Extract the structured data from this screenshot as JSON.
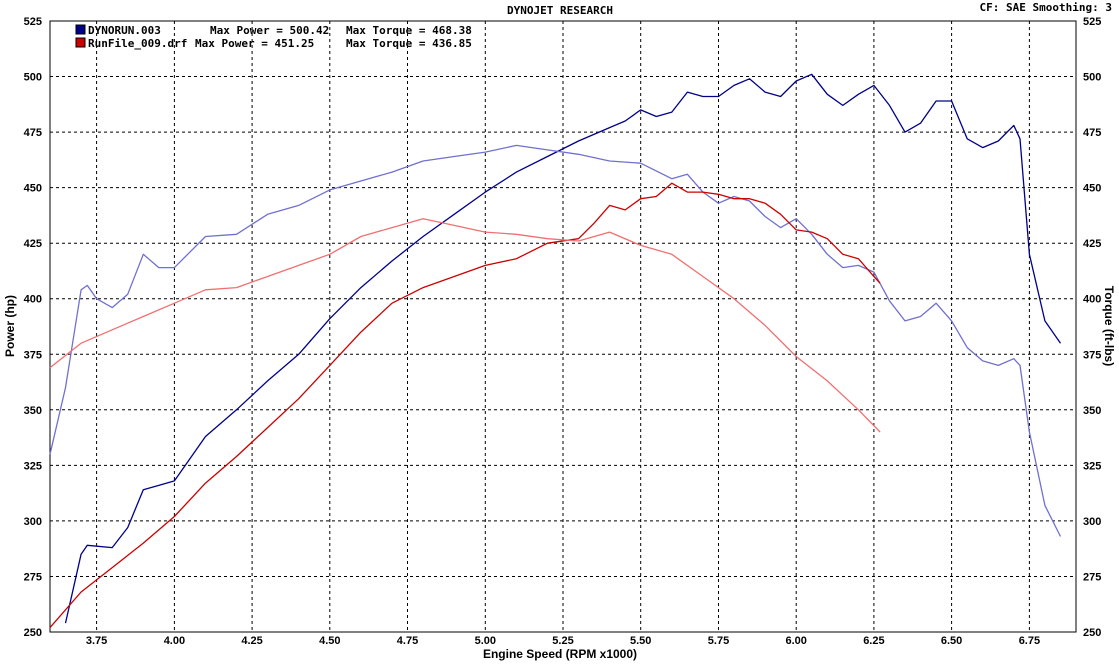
{
  "header": {
    "title": "DYNOJET RESEARCH",
    "info": "CF: SAE  Smoothing: 3"
  },
  "legend": [
    {
      "file": "DYNORUN.003",
      "power_label": "Max Power = 500.42",
      "torque_label": "Max Torque = 468.38",
      "color": "#00008b"
    },
    {
      "file": "RunFile_009.drf",
      "power_label": "Max Power = 451.25",
      "torque_label": "Max Torque = 436.85",
      "color": "#cc0000"
    }
  ],
  "chart_data": {
    "type": "line",
    "title": "DYNOJET RESEARCH",
    "xlabel": "Engine Speed (RPM x1000)",
    "ylabel_left": "Power (hp)",
    "ylabel_right": "Torque (ft-lbs)",
    "xlim": [
      3.6,
      6.9
    ],
    "ylim": [
      250,
      525
    ],
    "x_ticks": [
      3.75,
      4.0,
      4.25,
      4.5,
      4.75,
      5.0,
      5.25,
      5.5,
      5.75,
      6.0,
      6.25,
      6.5,
      6.75
    ],
    "x_tick_labels": [
      "3.75",
      "4.00",
      "4.25",
      "4.50",
      "4.75",
      "5.00",
      "5.25",
      "5.50",
      "5.75",
      "6.00",
      "6.25",
      "6.50",
      "6.75"
    ],
    "y_ticks": [
      250,
      275,
      300,
      325,
      350,
      375,
      400,
      425,
      450,
      475,
      500,
      525
    ],
    "y_tick_labels": [
      "250",
      "275",
      "300",
      "325",
      "350",
      "375",
      "400",
      "425",
      "450",
      "475",
      "500",
      "525"
    ],
    "grid": true,
    "series": [
      {
        "name": "DYNORUN.003 Power",
        "color": "#00008b",
        "x": [
          3.65,
          3.7,
          3.72,
          3.8,
          3.85,
          3.9,
          3.95,
          4.0,
          4.1,
          4.2,
          4.3,
          4.4,
          4.5,
          4.6,
          4.7,
          4.8,
          4.9,
          5.0,
          5.1,
          5.2,
          5.3,
          5.4,
          5.45,
          5.5,
          5.55,
          5.6,
          5.65,
          5.7,
          5.75,
          5.8,
          5.85,
          5.9,
          5.95,
          6.0,
          6.05,
          6.1,
          6.15,
          6.2,
          6.25,
          6.3,
          6.35,
          6.4,
          6.45,
          6.5,
          6.55,
          6.6,
          6.65,
          6.7,
          6.72,
          6.75,
          6.8,
          6.85
        ],
        "y": [
          254,
          285,
          289,
          288,
          297,
          314,
          316,
          318,
          338,
          350,
          363,
          375,
          391,
          405,
          417,
          428,
          438,
          448,
          457,
          464,
          471,
          477,
          480,
          485,
          482,
          484,
          493,
          491,
          491,
          496,
          499,
          493,
          491,
          498,
          501,
          492,
          487,
          492,
          496,
          487,
          475,
          479,
          489,
          489,
          472,
          468,
          471,
          478,
          472,
          420,
          390,
          380
        ]
      },
      {
        "name": "DYNORUN.003 Torque",
        "color": "#7070d0",
        "x": [
          3.6,
          3.65,
          3.7,
          3.72,
          3.75,
          3.8,
          3.85,
          3.9,
          3.95,
          4.0,
          4.1,
          4.2,
          4.3,
          4.4,
          4.5,
          4.6,
          4.7,
          4.8,
          4.9,
          5.0,
          5.1,
          5.2,
          5.3,
          5.4,
          5.5,
          5.6,
          5.65,
          5.7,
          5.75,
          5.8,
          5.85,
          5.9,
          5.95,
          6.0,
          6.05,
          6.1,
          6.15,
          6.2,
          6.25,
          6.3,
          6.35,
          6.4,
          6.45,
          6.5,
          6.55,
          6.6,
          6.65,
          6.7,
          6.72,
          6.75,
          6.8,
          6.85
        ],
        "y": [
          330,
          360,
          404,
          406,
          400,
          396,
          402,
          420,
          414,
          414,
          428,
          429,
          438,
          442,
          449,
          453,
          457,
          462,
          464,
          466,
          469,
          467,
          465,
          462,
          461,
          454,
          456,
          448,
          443,
          446,
          444,
          437,
          432,
          436,
          429,
          420,
          414,
          415,
          412,
          399,
          390,
          392,
          398,
          390,
          378,
          372,
          370,
          373,
          370,
          340,
          307,
          293
        ]
      },
      {
        "name": "RunFile_009.drf Power",
        "color": "#cc0000",
        "x": [
          3.6,
          3.7,
          3.8,
          3.9,
          4.0,
          4.1,
          4.2,
          4.3,
          4.4,
          4.5,
          4.6,
          4.7,
          4.8,
          4.9,
          5.0,
          5.1,
          5.2,
          5.3,
          5.35,
          5.4,
          5.45,
          5.5,
          5.55,
          5.6,
          5.65,
          5.7,
          5.75,
          5.8,
          5.85,
          5.9,
          5.95,
          6.0,
          6.05,
          6.1,
          6.15,
          6.2,
          6.25,
          6.27
        ],
        "y": [
          252,
          268,
          279,
          290,
          302,
          317,
          329,
          342,
          355,
          370,
          385,
          398,
          405,
          410,
          415,
          418,
          425,
          427,
          434,
          442,
          440,
          445,
          446,
          452,
          448,
          448,
          447,
          445,
          445,
          443,
          438,
          431,
          430,
          427,
          420,
          418,
          410,
          407
        ]
      },
      {
        "name": "RunFile_009.drf Torque",
        "color": "#f07070",
        "x": [
          3.6,
          3.7,
          3.8,
          3.9,
          4.0,
          4.1,
          4.2,
          4.3,
          4.4,
          4.5,
          4.6,
          4.7,
          4.8,
          4.9,
          5.0,
          5.1,
          5.2,
          5.3,
          5.4,
          5.5,
          5.6,
          5.7,
          5.8,
          5.9,
          6.0,
          6.1,
          6.2,
          6.27
        ],
        "y": [
          369,
          380,
          386,
          392,
          398,
          404,
          405,
          410,
          415,
          420,
          428,
          432,
          436,
          433,
          430,
          429,
          427,
          426,
          430,
          424,
          420,
          410,
          400,
          388,
          374,
          363,
          350,
          340
        ]
      }
    ]
  }
}
